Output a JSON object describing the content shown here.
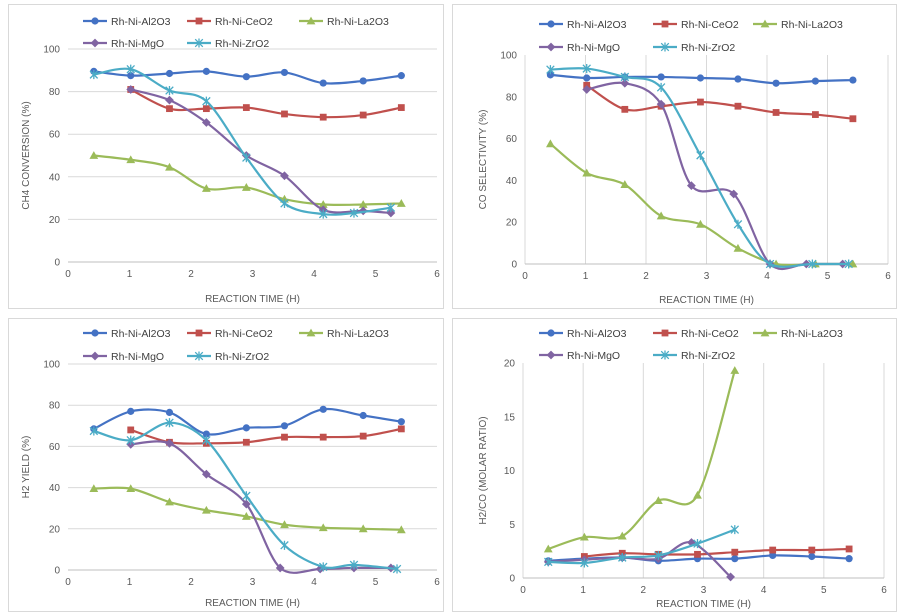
{
  "colors": {
    "Rh-Ni-Al2O3": "#4472C4",
    "Rh-Ni-CeO2": "#C0504D",
    "Rh-Ni-La2O3": "#9BBB59",
    "Rh-Ni-MgO": "#8064A2",
    "Rh-Ni-ZrO2": "#4BACC6",
    "grid": "#d9d9d9",
    "text": "#595959"
  },
  "markers": {
    "Rh-Ni-Al2O3": "circle",
    "Rh-Ni-CeO2": "square",
    "Rh-Ni-La2O3": "triangle",
    "Rh-Ni-MgO": "diamond",
    "Rh-Ni-ZrO2": "asterisk"
  },
  "chart_data": [
    {
      "type": "line",
      "xlabel": "REACTION TIME (H)",
      "ylabel": "CH4 CONVERSION (%)",
      "xlim": [
        0,
        6
      ],
      "ylim": [
        0,
        100
      ],
      "xticks": [
        "0",
        "1",
        "2",
        "3",
        "4",
        "5",
        "6"
      ],
      "yticks": [
        "0",
        "20",
        "40",
        "60",
        "80",
        "100"
      ],
      "grid": "horizontal",
      "legend": "top",
      "series": [
        {
          "name": "Rh-Ni-Al2O3",
          "x": [
            0.42,
            1.02,
            1.65,
            2.25,
            2.9,
            3.52,
            4.15,
            4.8,
            5.42
          ],
          "y": [
            89.5,
            87.5,
            88.5,
            89.5,
            87,
            89,
            84,
            85,
            87.5
          ]
        },
        {
          "name": "Rh-Ni-CeO2",
          "x": [
            1.02,
            1.65,
            2.25,
            2.9,
            3.52,
            4.15,
            4.8,
            5.42
          ],
          "y": [
            81,
            72,
            72,
            72.5,
            69.5,
            68,
            69,
            72.5
          ]
        },
        {
          "name": "Rh-Ni-La2O3",
          "x": [
            0.42,
            1.02,
            1.65,
            2.25,
            2.9,
            3.52,
            4.15,
            4.8,
            5.42
          ],
          "y": [
            50,
            48,
            44.5,
            34.5,
            35,
            29.5,
            27,
            27,
            27.5
          ]
        },
        {
          "name": "Rh-Ni-MgO",
          "x": [
            1.02,
            1.65,
            2.25,
            2.9,
            3.52,
            4.15,
            4.8,
            5.25
          ],
          "y": [
            81,
            76,
            65.5,
            50,
            40.5,
            24.5,
            24,
            23
          ]
        },
        {
          "name": "Rh-Ni-ZrO2",
          "x": [
            0.42,
            1.02,
            1.65,
            2.25,
            2.9,
            3.52,
            4.15,
            4.65,
            5.25
          ],
          "y": [
            88,
            90.5,
            80.5,
            75.5,
            49,
            27.5,
            22.5,
            23,
            25.5
          ]
        }
      ]
    },
    {
      "type": "line",
      "xlabel": "REACTION TIME (H)",
      "ylabel": "CO SELECTIVITY (%)",
      "xlim": [
        0,
        6
      ],
      "ylim": [
        0,
        100
      ],
      "xticks": [
        "0",
        "1",
        "2",
        "3",
        "4",
        "5",
        "6"
      ],
      "yticks": [
        "0",
        "20",
        "40",
        "60",
        "80",
        "100"
      ],
      "grid": "vertical",
      "legend": "top",
      "series": [
        {
          "name": "Rh-Ni-Al2O3",
          "x": [
            0.42,
            1.02,
            1.65,
            2.25,
            2.9,
            3.52,
            4.15,
            4.8,
            5.42
          ],
          "y": [
            90.5,
            89,
            89.5,
            89.5,
            89,
            88.5,
            86.5,
            87.5,
            88
          ]
        },
        {
          "name": "Rh-Ni-CeO2",
          "x": [
            1.02,
            1.65,
            2.25,
            2.9,
            3.52,
            4.15,
            4.8,
            5.42
          ],
          "y": [
            85.5,
            74,
            75.5,
            77.5,
            75.5,
            72.5,
            71.5,
            69.5
          ]
        },
        {
          "name": "Rh-Ni-La2O3",
          "x": [
            0.42,
            1.02,
            1.65,
            2.25,
            2.9,
            3.52,
            4.15,
            4.8,
            5.42
          ],
          "y": [
            57.5,
            43.5,
            38,
            23,
            19,
            7.5,
            0,
            0,
            0
          ]
        },
        {
          "name": "Rh-Ni-MgO",
          "x": [
            1.02,
            1.65,
            2.25,
            2.75,
            3.45,
            4.05,
            4.65,
            5.25
          ],
          "y": [
            83.5,
            86.5,
            76.5,
            37.5,
            33.5,
            0,
            0,
            0
          ]
        },
        {
          "name": "Rh-Ni-ZrO2",
          "x": [
            0.42,
            1.02,
            1.65,
            2.25,
            2.9,
            3.52,
            4.05,
            4.75,
            5.35
          ],
          "y": [
            93,
            93.5,
            89.5,
            84.5,
            52,
            19,
            0,
            0,
            0
          ]
        }
      ]
    },
    {
      "type": "line",
      "xlabel": "REACTION TIME (H)",
      "ylabel": "H2 YIELD (%)",
      "xlim": [
        0,
        6
      ],
      "ylim": [
        0,
        100
      ],
      "xticks": [
        "0",
        "1",
        "2",
        "3",
        "4",
        "5",
        "6"
      ],
      "yticks": [
        "0",
        "20",
        "40",
        "60",
        "80",
        "100"
      ],
      "grid": "horizontal",
      "legend": "top",
      "series": [
        {
          "name": "Rh-Ni-Al2O3",
          "x": [
            0.42,
            1.02,
            1.65,
            2.25,
            2.9,
            3.52,
            4.15,
            4.8,
            5.42
          ],
          "y": [
            68.5,
            77,
            76.5,
            66,
            69,
            70,
            78,
            75,
            72
          ]
        },
        {
          "name": "Rh-Ni-CeO2",
          "x": [
            1.02,
            1.65,
            2.25,
            2.9,
            3.52,
            4.15,
            4.8,
            5.42
          ],
          "y": [
            68,
            62,
            61.5,
            62,
            64.5,
            64.5,
            65,
            68.5
          ]
        },
        {
          "name": "Rh-Ni-La2O3",
          "x": [
            0.42,
            1.02,
            1.65,
            2.25,
            2.9,
            3.52,
            4.15,
            4.8,
            5.42
          ],
          "y": [
            39.5,
            39.5,
            33,
            29,
            26,
            22,
            20.5,
            20,
            19.5
          ]
        },
        {
          "name": "Rh-Ni-MgO",
          "x": [
            1.02,
            1.65,
            2.25,
            2.9,
            3.45,
            4.1,
            4.65,
            5.25
          ],
          "y": [
            61,
            61.5,
            46.5,
            32,
            1,
            0.5,
            1,
            1
          ]
        },
        {
          "name": "Rh-Ni-ZrO2",
          "x": [
            0.42,
            1.02,
            1.65,
            2.25,
            2.9,
            3.52,
            4.15,
            4.65,
            5.35
          ],
          "y": [
            67.5,
            63,
            71.5,
            63,
            36,
            12,
            1.5,
            2.5,
            0.5
          ]
        }
      ]
    },
    {
      "type": "line",
      "xlabel": "REACTION TIME (H)",
      "ylabel": "H2/CO (MOLAR RATIO)",
      "xlim": [
        0,
        6
      ],
      "ylim": [
        0,
        20
      ],
      "xticks": [
        "0",
        "1",
        "2",
        "3",
        "4",
        "5",
        "6"
      ],
      "yticks": [
        "0",
        "5",
        "10",
        "15",
        "20"
      ],
      "grid": "vertical",
      "legend": "top",
      "series": [
        {
          "name": "Rh-Ni-Al2O3",
          "x": [
            0.42,
            1.02,
            1.65,
            2.25,
            2.9,
            3.52,
            4.15,
            4.8,
            5.42
          ],
          "y": [
            1.6,
            1.8,
            1.9,
            1.6,
            1.8,
            1.8,
            2.1,
            2.0,
            1.8
          ]
        },
        {
          "name": "Rh-Ni-CeO2",
          "x": [
            1.02,
            1.65,
            2.25,
            2.9,
            3.52,
            4.15,
            4.8,
            5.42
          ],
          "y": [
            2.0,
            2.3,
            2.2,
            2.2,
            2.4,
            2.6,
            2.6,
            2.7
          ]
        },
        {
          "name": "Rh-Ni-La2O3",
          "x": [
            0.42,
            1.02,
            1.65,
            2.25,
            2.9,
            3.52
          ],
          "y": [
            2.7,
            3.8,
            3.9,
            7.2,
            7.7,
            19.3
          ]
        },
        {
          "name": "Rh-Ni-MgO",
          "x": [
            0.42,
            1.02,
            1.65,
            2.25,
            2.8,
            3.45
          ],
          "y": [
            1.5,
            1.7,
            1.9,
            1.8,
            3.3,
            0.1
          ]
        },
        {
          "name": "Rh-Ni-ZrO2",
          "x": [
            0.42,
            1.02,
            1.65,
            2.25,
            2.9,
            3.52
          ],
          "y": [
            1.5,
            1.4,
            1.9,
            2.1,
            3.2,
            4.5
          ]
        }
      ]
    }
  ]
}
